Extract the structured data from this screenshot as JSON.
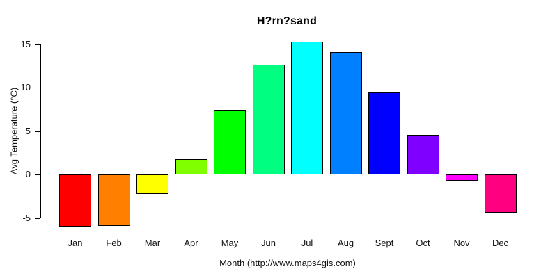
{
  "chart_data": {
    "type": "bar",
    "title": "H?rn?sand",
    "xlabel": "Month (http://www.maps4gis.com)",
    "ylabel": "Avg Temperature (°C)",
    "categories": [
      "Jan",
      "Feb",
      "Mar",
      "Apr",
      "May",
      "Jun",
      "Jul",
      "Aug",
      "Sept",
      "Oct",
      "Nov",
      "Dec"
    ],
    "values": [
      -6.0,
      -5.9,
      -2.2,
      1.8,
      7.5,
      12.7,
      15.3,
      14.1,
      9.5,
      4.6,
      -0.7,
      -4.4
    ],
    "bar_colors": [
      "#FF0000",
      "#FF8000",
      "#FFFF00",
      "#80FF00",
      "#00FF00",
      "#00FF80",
      "#00FFFF",
      "#0080FF",
      "#0000FF",
      "#8000FF",
      "#FF00FF",
      "#FF0080"
    ],
    "bar_border_color": "#000000",
    "yticks": [
      -5,
      0,
      5,
      10,
      15
    ],
    "ylim": [
      -6.5,
      15.5
    ],
    "grid": false,
    "legend": null,
    "axis_color": "#000000",
    "text_color": "#111111"
  }
}
